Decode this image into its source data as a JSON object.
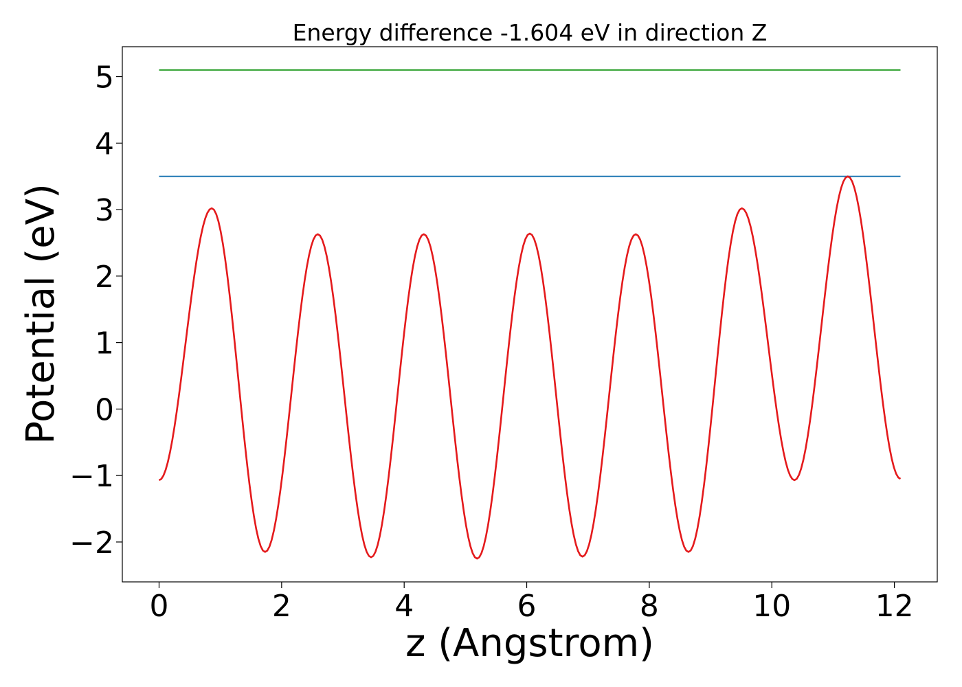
{
  "chart_data": {
    "type": "line",
    "title": "Energy difference -1.604 eV in direction Z",
    "xlabel": "z (Angstrom)",
    "ylabel": "Potential (eV)",
    "xlim": [
      -0.6,
      12.7
    ],
    "ylim": [
      -2.6,
      5.45
    ],
    "xticks": [
      0,
      2,
      4,
      6,
      8,
      10,
      12
    ],
    "yticks": [
      -2,
      -1,
      0,
      1,
      2,
      3,
      4,
      5
    ],
    "xtick_labels": [
      "0",
      "2",
      "4",
      "6",
      "8",
      "10",
      "12"
    ],
    "ytick_labels": [
      "−2",
      "−1",
      "0",
      "1",
      "2",
      "3",
      "4",
      "5"
    ],
    "grid": false,
    "legend": "none",
    "series": [
      {
        "color": "#2ca02c",
        "x": [
          0,
          12.1
        ],
        "y": [
          5.1,
          5.1
        ]
      },
      {
        "color": "#1f77b4",
        "x": [
          0,
          12.1
        ],
        "y": [
          3.5,
          3.5
        ]
      },
      {
        "color": "#e41a1c",
        "x": [
          0.0,
          0.86,
          1.73,
          2.59,
          3.46,
          4.32,
          5.19,
          6.05,
          6.91,
          7.78,
          8.64,
          9.51,
          10.37,
          11.24,
          12.1
        ],
        "y": [
          -1.07,
          3.02,
          -2.15,
          2.63,
          -2.23,
          2.63,
          -2.25,
          2.64,
          -2.22,
          2.63,
          -2.15,
          3.02,
          -1.07,
          3.5,
          -1.05
        ]
      }
    ]
  }
}
